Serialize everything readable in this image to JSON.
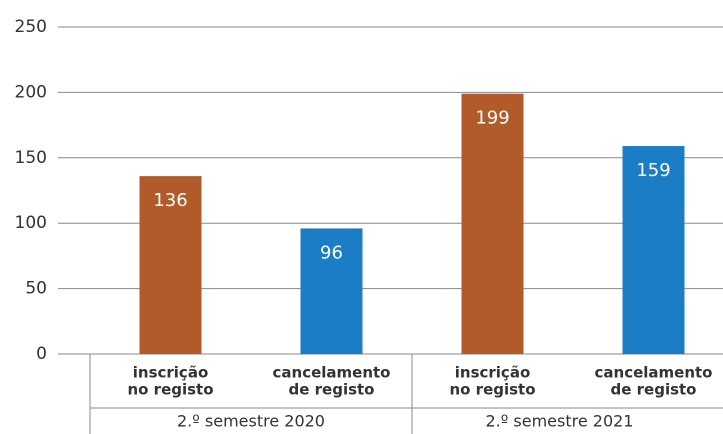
{
  "chart_data": {
    "type": "bar",
    "categories": [
      [
        "inscrição",
        "no registo"
      ],
      [
        "cancelamento",
        "de registo"
      ],
      [
        "inscrição",
        "no registo"
      ],
      [
        "cancelamento",
        "de registo"
      ]
    ],
    "groups": [
      "2.º semestre 2020",
      "2.º semestre 2021"
    ],
    "values": [
      136,
      96,
      199,
      159
    ],
    "colors": [
      "#b15b2a",
      "#1b7dc5",
      "#b15b2a",
      "#1b7dc5"
    ],
    "ylim": [
      0,
      250
    ],
    "yticks": [
      0,
      50,
      100,
      150,
      200,
      250
    ],
    "grid": true
  }
}
